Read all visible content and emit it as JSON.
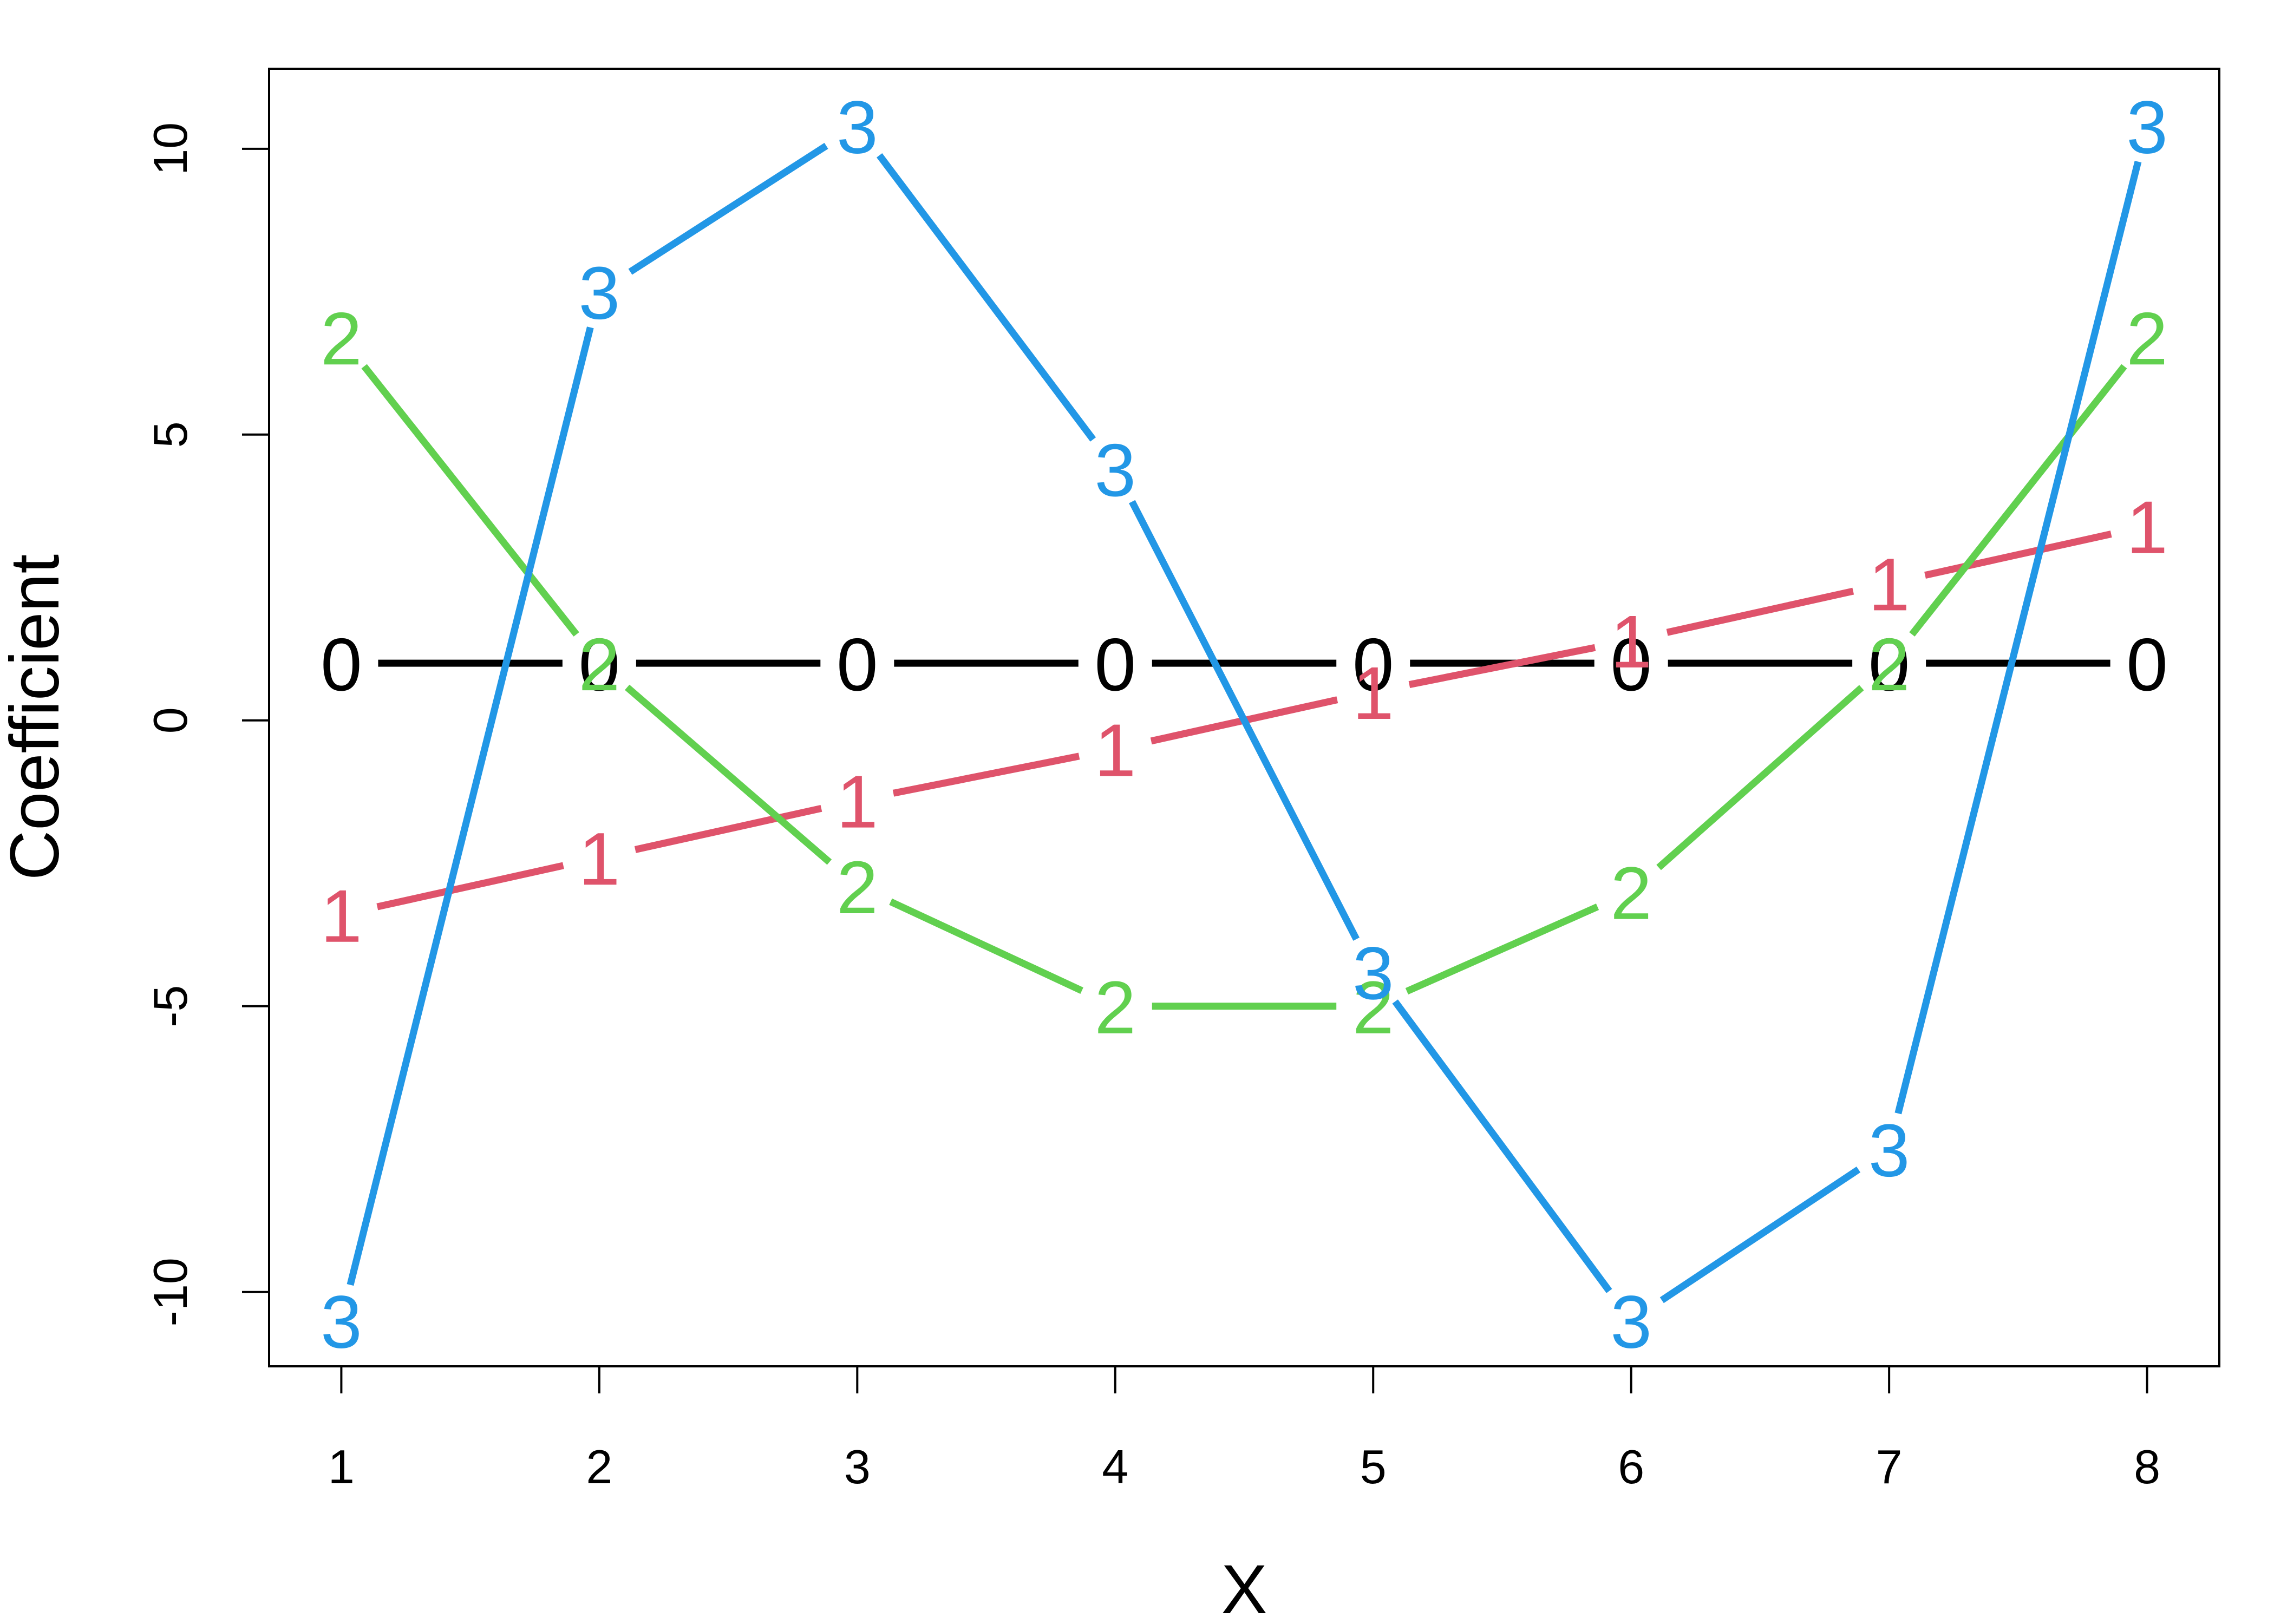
{
  "chart_data": {
    "type": "line",
    "title": "",
    "xlabel": "X",
    "ylabel": "Coefficient",
    "x": [
      1,
      2,
      3,
      4,
      5,
      6,
      7,
      8
    ],
    "xlim": [
      0.72,
      8.28
    ],
    "ylim": [
      -11.3,
      11.4
    ],
    "xticks": [
      "1",
      "2",
      "3",
      "4",
      "5",
      "6",
      "7",
      "8"
    ],
    "yticks": [
      -10,
      -5,
      0,
      5,
      10
    ],
    "ytick_labels": [
      "-10",
      "-5",
      "0",
      "5",
      "10"
    ],
    "grid": false,
    "legend": "none",
    "series": [
      {
        "marker": "0",
        "color": "#000000",
        "values": [
          1,
          1,
          1,
          1,
          1,
          1,
          1,
          1
        ]
      },
      {
        "marker": "1",
        "color": "#DF536B",
        "values": [
          -3.4,
          -2.4,
          -1.4,
          -0.5,
          0.5,
          1.4,
          2.4,
          3.4
        ]
      },
      {
        "marker": "2",
        "color": "#61D04F",
        "values": [
          6.7,
          1,
          -2.9,
          -5,
          -5,
          -3,
          1,
          6.7
        ]
      },
      {
        "marker": "3",
        "color": "#2297E6",
        "values": [
          -10.5,
          7.5,
          10.4,
          4.4,
          -4.4,
          -10.5,
          -7.5,
          10.4
        ]
      }
    ]
  }
}
